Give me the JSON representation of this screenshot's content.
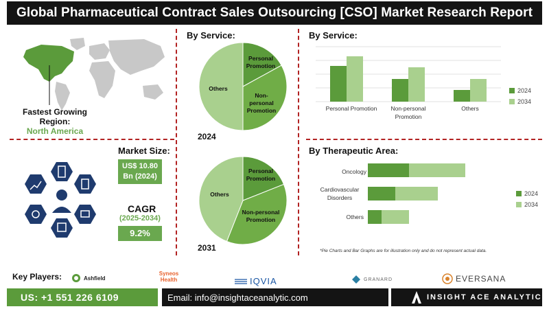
{
  "title": "Global Pharmaceutical Contract Sales Outsourcing [CSO] Market Research Report",
  "region": {
    "label": "Fastest Growing Region:",
    "value": "North America"
  },
  "market_size": {
    "label": "Market Size:",
    "value_line1": "US$ 10.80",
    "value_line2": "Bn (2024)"
  },
  "cagr": {
    "label": "CAGR",
    "period": "(2025-2034)",
    "value": "9.2%"
  },
  "pie_section": {
    "heading": "By Service:",
    "pie2024_year": "2024",
    "pie2031_year": "2031",
    "labels": [
      "Personal Promotion",
      "Non-personal Promotion",
      "Others"
    ]
  },
  "bar_service": {
    "heading": "By Service:"
  },
  "bar_therapeutic": {
    "heading": "By Therapeutic Area:"
  },
  "disclaimer": "*Pie Charts and Bar Graphs are for illustration only and do not represent actual data.",
  "key_players": {
    "label": "Key Players:",
    "companies": [
      "Ashfield",
      "Syneos Health",
      "IQVIA",
      "GRANARD",
      "EVERSANA"
    ]
  },
  "footer": {
    "phone": "US: +1 551 226 6109",
    "email": "Email: info@insightaceanalytic.com",
    "brand": "INSIGHT ACE ANALYTIC"
  },
  "colors": {
    "dark_green": "#5b9b3b",
    "light_green": "#a9d08e",
    "mid_green": "#70ad47",
    "black": "#141414",
    "red_dash": "#b22222"
  },
  "chart_data": [
    {
      "type": "pie",
      "title": "2024",
      "categories": [
        "Personal Promotion",
        "Non-personal Promotion",
        "Others"
      ],
      "values": [
        17,
        33,
        50
      ]
    },
    {
      "type": "pie",
      "title": "2031",
      "categories": [
        "Personal Promotion",
        "Non-personal Promotion",
        "Others"
      ],
      "values": [
        19,
        37,
        44
      ]
    },
    {
      "type": "bar",
      "orientation": "vertical",
      "categories": [
        "Personal Promotion",
        "Non-personal Promotion",
        "Others"
      ],
      "series": [
        {
          "name": "2024",
          "values": [
            5.2,
            3.3,
            1.7
          ]
        },
        {
          "name": "2034",
          "values": [
            6.6,
            5.0,
            3.3
          ]
        }
      ],
      "ylim": [
        0,
        8
      ],
      "grid": true,
      "legend": "right"
    },
    {
      "type": "bar",
      "orientation": "stacked-horizontal",
      "categories": [
        "Oncology",
        "Cardiovascular Disorders",
        "Others"
      ],
      "series": [
        {
          "name": "2024",
          "values": [
            3.0,
            2.0,
            1.0
          ]
        },
        {
          "name": "2034",
          "values": [
            4.1,
            3.1,
            2.0
          ]
        }
      ],
      "xlim": [
        0,
        10
      ],
      "legend": "right"
    }
  ]
}
